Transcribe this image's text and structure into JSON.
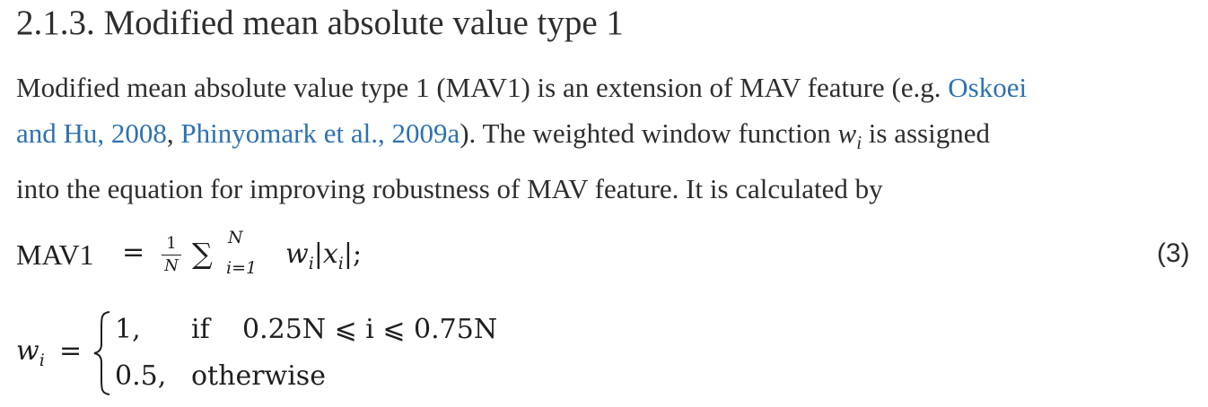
{
  "section": {
    "heading": "2.1.3. Modified mean absolute value type 1"
  },
  "paragraph": {
    "line1_text": "Modified mean absolute value type 1 (MAV1) is an extension of MAV feature (e.g. ",
    "cite1_part1": "Oskoei",
    "cite1_part2": "and Hu, 2008",
    "sep": ", ",
    "cite2": "Phinyomark et al., 2009a",
    "line2_text": "). The weighted window function ",
    "var_w": "w",
    "var_i": "i",
    "line2_tail": " is assigned",
    "line3_text": "into the equation for improving robustness of MAV feature. It is calculated by"
  },
  "equation1": {
    "lhs": "MAV1",
    "equals": "=",
    "frac_num": "1",
    "frac_den": "N",
    "sum_symbol": "∑",
    "sum_upper": "N",
    "sum_lower": "i=1",
    "body": "w",
    "body_sub": "i",
    "abs_open": "|",
    "abs_var": "x",
    "abs_sub": "i",
    "abs_close": "|;",
    "number": "(3)"
  },
  "equation2": {
    "lhs": "w",
    "lhs_sub": "i",
    "equals": "=",
    "case1_value": "1,",
    "case1_cond_word": "if",
    "case1_cond": "0.25N ⩽ i ⩽ 0.75N",
    "case2_value": "0.5,",
    "case2_cond": "otherwise"
  }
}
